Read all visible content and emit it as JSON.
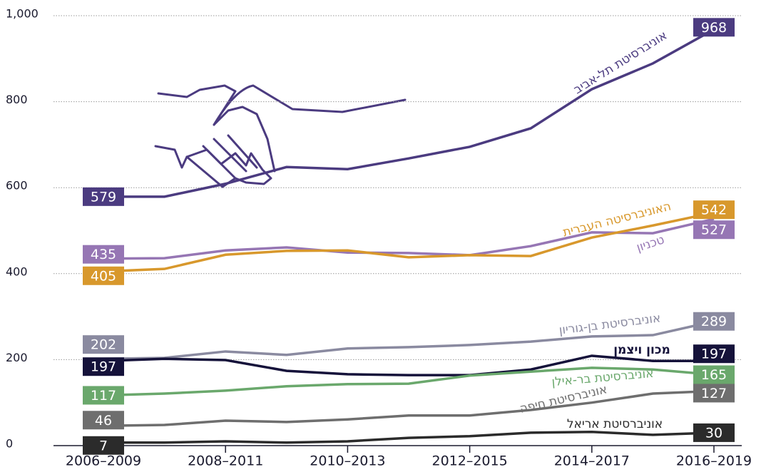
{
  "chart_data": {
    "type": "line",
    "categories": [
      "2006–2009",
      null,
      "2008–2011",
      null,
      "2010–2013",
      null,
      "2012–2015",
      null,
      "2014–2017",
      null,
      "2016–2019"
    ],
    "ylim": [
      0,
      1000
    ],
    "yticks": [
      0,
      200,
      400,
      600,
      800,
      {
        "value": 1000,
        "label": "1,000"
      }
    ],
    "grid": true,
    "series": [
      {
        "name": "אוניברסיטת תל-אביב",
        "color": "#4b3b80",
        "values": [
          579,
          579,
          609,
          648,
          643,
          668,
          695,
          738,
          829,
          889,
          968
        ]
      },
      {
        "name": "טכניון",
        "color": "#9676b4",
        "values": [
          435,
          436,
          454,
          461,
          449,
          448,
          443,
          464,
          496,
          494,
          527
        ]
      },
      {
        "name": "האוניברסיטה העברית",
        "color": "#d8982c",
        "values": [
          405,
          411,
          444,
          453,
          454,
          438,
          443,
          441,
          484,
          512,
          542
        ]
      },
      {
        "name": "אוניברסיטת בן-גוריון",
        "color": "#8a8aa0",
        "values": [
          202,
          204,
          219,
          211,
          226,
          229,
          234,
          242,
          254,
          257,
          289
        ]
      },
      {
        "name": "מכון ויצמן",
        "color": "#15123a",
        "values": [
          197,
          202,
          199,
          174,
          166,
          164,
          164,
          177,
          209,
          197,
          197
        ]
      },
      {
        "name": "אוניברסיטת בר-אילן",
        "color": "#6aa86c",
        "values": [
          117,
          121,
          128,
          138,
          143,
          144,
          163,
          172,
          181,
          177,
          165
        ]
      },
      {
        "name": "אוניברסיטת חיפה",
        "color": "#6e6e6e",
        "values": [
          46,
          48,
          58,
          55,
          61,
          70,
          70,
          83,
          100,
          121,
          127
        ]
      },
      {
        "name": "אוניברסיטת אריאל",
        "color": "#2b2b2b",
        "values": [
          7,
          7,
          10,
          7,
          10,
          18,
          22,
          30,
          32,
          25,
          30
        ]
      }
    ]
  }
}
